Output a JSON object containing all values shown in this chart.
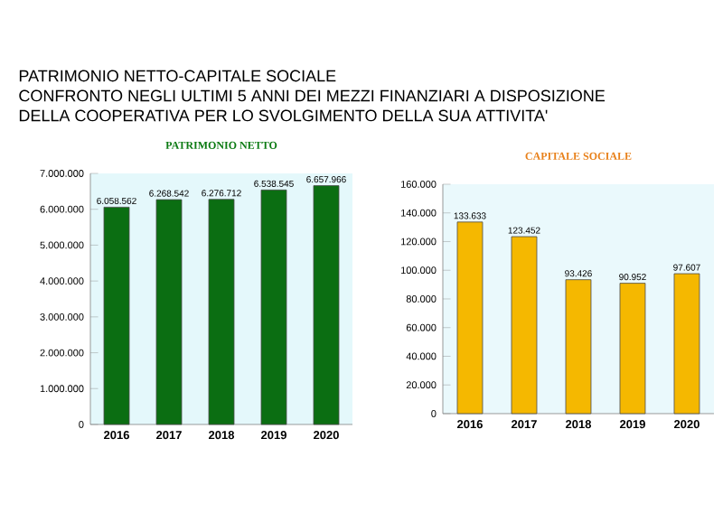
{
  "chart_data": [
    {
      "type": "bar",
      "title": "PATRIMONIO NETTO",
      "annotations": [
        "PATRIMONIO NETTO-CAPITALE SOCIALE",
        "CONFRONTO NEGLI ULTIMI 5 ANNI DEI MEZZI FINANZIARI A DISPOSIZIONE",
        "DELLA COOPERATIVA PER LO SVOLGIMENTO DELLA SUA ATTIVITA'"
      ],
      "categories": [
        "2016",
        "2017",
        "2018",
        "2019",
        "2020"
      ],
      "values": [
        6058562,
        6268542,
        6276712,
        6538545,
        6657966
      ],
      "value_labels": [
        "6.058.562",
        "6.268.542",
        "6.276.712",
        "6.538.545",
        "6.657.966"
      ],
      "color": "#0b6e12",
      "ylim": [
        0,
        7000000
      ],
      "yticks": [
        {
          "value": 0,
          "label": "0"
        },
        {
          "value": 1000000,
          "label": "1.000.000"
        },
        {
          "value": 2000000,
          "label": "2.000.000"
        },
        {
          "value": 3000000,
          "label": "3.000.000"
        },
        {
          "value": 4000000,
          "label": "4.000.000"
        },
        {
          "value": 5000000,
          "label": "5.000.000"
        },
        {
          "value": 6000000,
          "label": "6.000.000"
        },
        {
          "value": 7000000,
          "label": "7.000.000"
        }
      ]
    },
    {
      "type": "bar",
      "title": "CAPITALE SOCIALE",
      "categories": [
        "2016",
        "2017",
        "2018",
        "2019",
        "2020"
      ],
      "values": [
        133633,
        123452,
        93426,
        90952,
        97607
      ],
      "value_labels": [
        "133.633",
        "123.452",
        "93.426",
        "90.952",
        "97.607"
      ],
      "color": "#f5b800",
      "ylim": [
        0,
        160000
      ],
      "yticks": [
        {
          "value": 0,
          "label": "0"
        },
        {
          "value": 20000,
          "label": "20.000"
        },
        {
          "value": 40000,
          "label": "40.000"
        },
        {
          "value": 60000,
          "label": "60.000"
        },
        {
          "value": 80000,
          "label": "80.000"
        },
        {
          "value": 100000,
          "label": "100.000"
        },
        {
          "value": 120000,
          "label": "120.000"
        },
        {
          "value": 140000,
          "label": "140.000"
        },
        {
          "value": 160000,
          "label": "160.000"
        }
      ]
    }
  ]
}
